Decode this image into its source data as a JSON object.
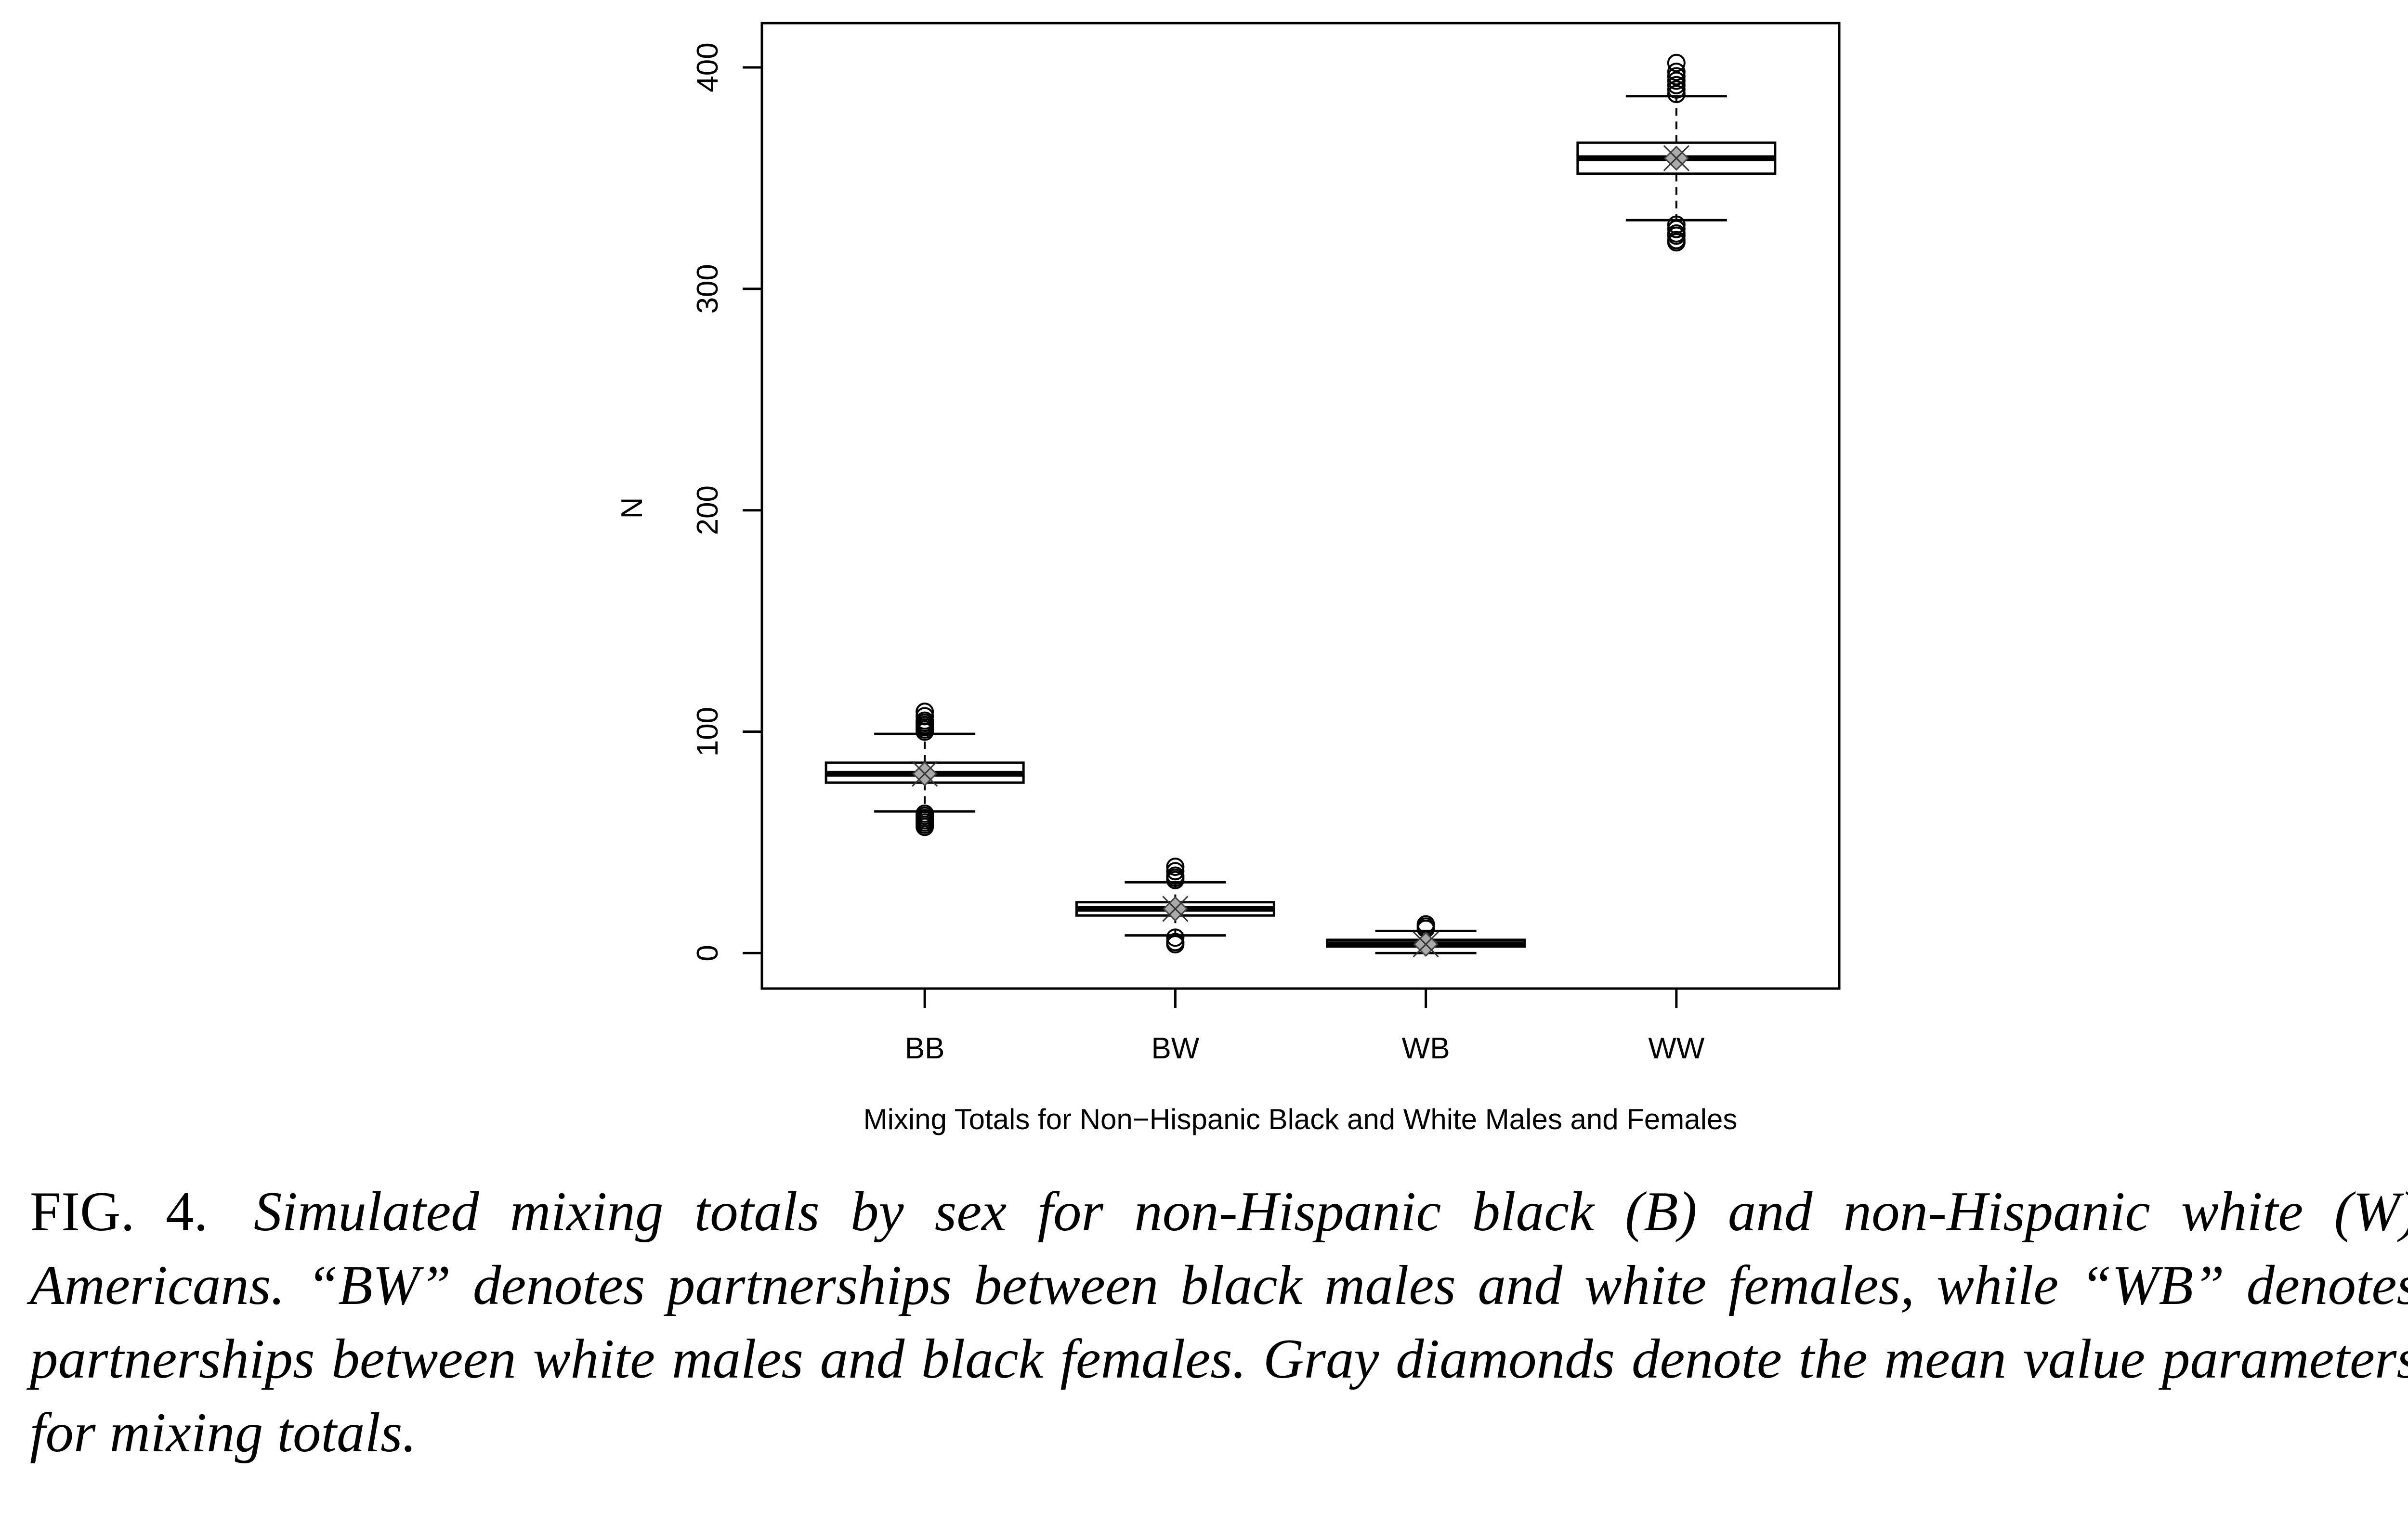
{
  "chart_data": {
    "type": "boxplot",
    "xlabel": "Mixing Totals for Non−Hispanic Black and White Males and Females",
    "ylabel": "N",
    "ylim": [
      -16,
      420
    ],
    "yticks": [
      0,
      100,
      200,
      300,
      400
    ],
    "grid": false,
    "categories": [
      "BB",
      "BW",
      "WB",
      "WW"
    ],
    "boxes": [
      {
        "category": "BB",
        "whisker_low": 64,
        "q1": 77,
        "median": 81,
        "q3": 86,
        "whisker_high": 99,
        "mean": 81,
        "outliers_low": [
          57,
          58,
          59,
          60,
          61,
          62,
          63
        ],
        "outliers_high": [
          100,
          101,
          102,
          103,
          104,
          105,
          107,
          109
        ]
      },
      {
        "category": "BW",
        "whisker_low": 8,
        "q1": 17,
        "median": 20,
        "q3": 23,
        "whisker_high": 32,
        "mean": 20,
        "outliers_low": [
          4,
          5,
          7
        ],
        "outliers_high": [
          33,
          34,
          35,
          37,
          39
        ]
      },
      {
        "category": "WB",
        "whisker_low": 0,
        "q1": 3,
        "median": 4,
        "q3": 6,
        "whisker_high": 10,
        "mean": 4,
        "outliers_low": [],
        "outliers_high": [
          11,
          12,
          13
        ]
      },
      {
        "category": "WW",
        "whisker_low": 331,
        "q1": 352,
        "median": 359,
        "q3": 366,
        "whisker_high": 387,
        "mean": 359,
        "outliers_low": [
          321,
          322,
          324,
          325,
          327,
          329
        ],
        "outliers_high": [
          388,
          390,
          392,
          394,
          396,
          398,
          402
        ]
      }
    ],
    "mean_marker_color": "#aaaaaa"
  },
  "caption": {
    "figure_label": "FIG. 4.",
    "text": "Simulated mixing totals by sex for non-Hispanic black (B) and non-Hispanic white (W) Americans. “BW” denotes partnerships between black males and white females, while “WB” denotes partnerships between white males and black females. Gray diamonds denote the mean value parameters for mixing totals."
  }
}
